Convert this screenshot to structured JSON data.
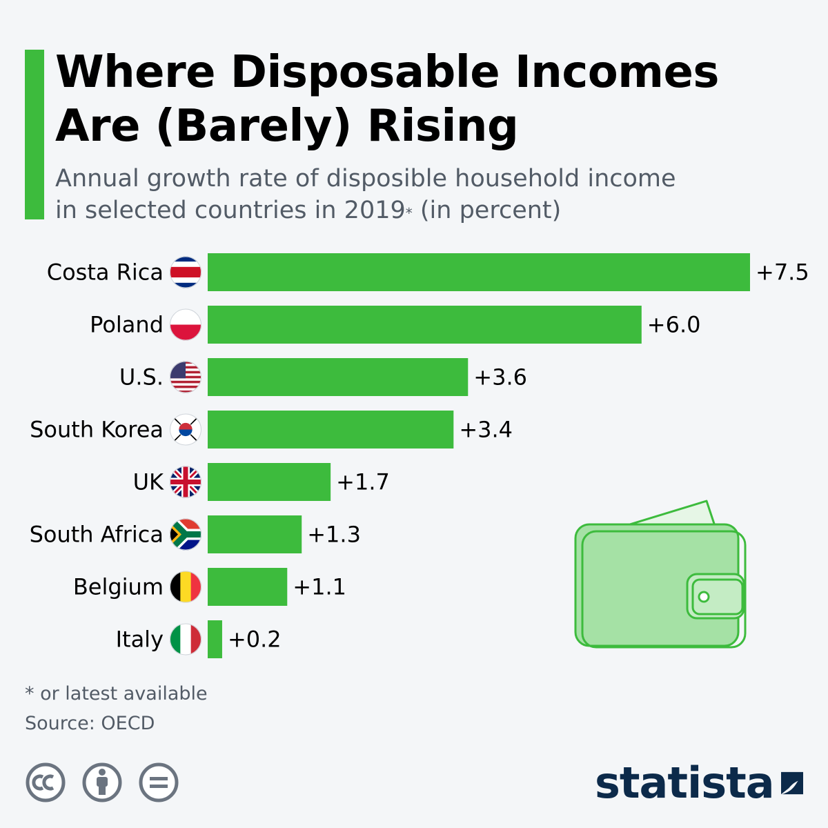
{
  "header": {
    "title_line1": "Where Disposable Incomes",
    "title_line2": "Are (Barely) Rising",
    "subtitle_line1": "Annual growth rate of disposible household income",
    "subtitle_line2_pre": "in selected countries in 2019",
    "subtitle_marker": "*",
    "subtitle_line2_post": " (in percent)"
  },
  "chart_data": {
    "type": "bar",
    "orientation": "horizontal",
    "title": "Where Disposable Incomes Are (Barely) Rising",
    "subtitle": "Annual growth rate of disposible household income in selected countries in 2019* (in percent)",
    "categories": [
      "Costa Rica",
      "Poland",
      "U.S.",
      "South Korea",
      "UK",
      "South Africa",
      "Belgium",
      "Italy"
    ],
    "values": [
      7.5,
      6.0,
      3.6,
      3.4,
      1.7,
      1.3,
      1.1,
      0.2
    ],
    "value_labels": [
      "+7.5",
      "+6.0",
      "+3.6",
      "+3.4",
      "+1.7",
      "+1.3",
      "+1.1",
      "+0.2"
    ],
    "flag_icons": [
      "costa-rica-flag-icon",
      "poland-flag-icon",
      "us-flag-icon",
      "south-korea-flag-icon",
      "uk-flag-icon",
      "south-africa-flag-icon",
      "belgium-flag-icon",
      "italy-flag-icon"
    ],
    "xlim": [
      0,
      7.5
    ],
    "bar_color": "#3dbb3d",
    "grid": false,
    "legend": "none"
  },
  "footer": {
    "footnote": "* or latest available",
    "source": "Source: OECD",
    "brand": "statista",
    "license_icons": [
      "creative-commons-icon",
      "attribution-icon",
      "no-derivatives-icon"
    ]
  },
  "colors": {
    "accent": "#3dbb3d",
    "background": "#f4f6f8",
    "subtitle": "#525b66",
    "brand": "#0c2a4a"
  },
  "illustration": "wallet-icon"
}
